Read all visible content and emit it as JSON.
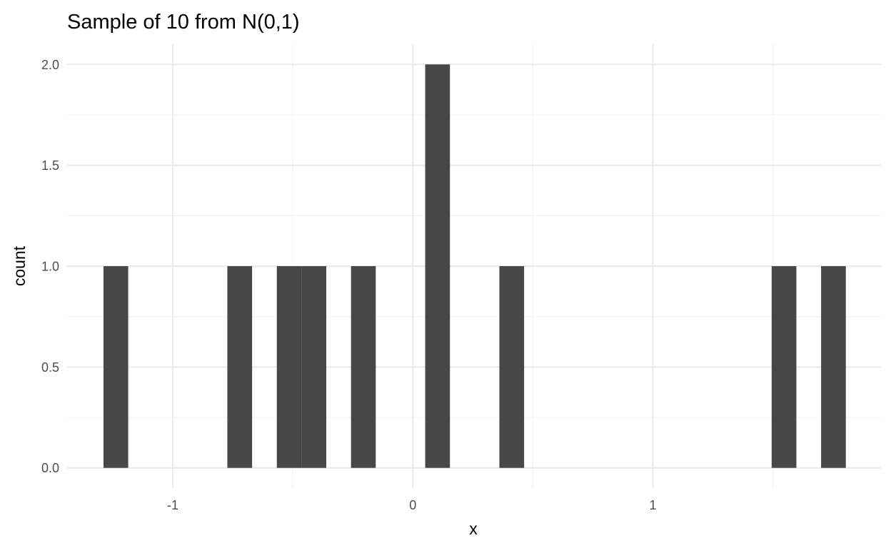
{
  "chart_data": {
    "type": "bar",
    "title": "Sample of 10 from N(0,1)",
    "xlabel": "x",
    "ylabel": "count",
    "xlim": [
      -1.44,
      1.95
    ],
    "ylim": [
      -0.1,
      2.1
    ],
    "bin_width": 0.103,
    "bins": [
      {
        "x": -1.237,
        "count": 1
      },
      {
        "x": -0.721,
        "count": 1
      },
      {
        "x": -0.515,
        "count": 1
      },
      {
        "x": -0.412,
        "count": 1
      },
      {
        "x": -0.206,
        "count": 1
      },
      {
        "x": 0.103,
        "count": 2
      },
      {
        "x": 0.412,
        "count": 1
      },
      {
        "x": 1.546,
        "count": 1
      },
      {
        "x": 1.752,
        "count": 1
      }
    ],
    "x_ticks": [
      {
        "value": -1,
        "label": "-1"
      },
      {
        "value": 0,
        "label": "0"
      },
      {
        "value": 1,
        "label": "1"
      }
    ],
    "y_ticks": [
      {
        "value": 0,
        "label": "0.0"
      },
      {
        "value": 0.5,
        "label": "0.5"
      },
      {
        "value": 1,
        "label": "1.0"
      },
      {
        "value": 1.5,
        "label": "1.5"
      },
      {
        "value": 2,
        "label": "2.0"
      }
    ],
    "grid": true,
    "bar_color": "#474747",
    "grid_major_color": "#ebebeb",
    "grid_minor_color": "#f3f3f3"
  }
}
